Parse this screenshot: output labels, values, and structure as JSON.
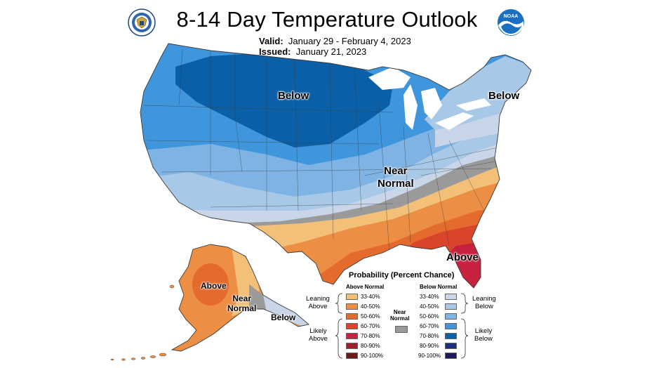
{
  "header": {
    "title": "8-14 Day Temperature Outlook",
    "valid_label": "Valid:",
    "valid_value": "January 29 - February 4, 2023",
    "issued_label": "Issued:",
    "issued_value": "January 21, 2023"
  },
  "logos": {
    "left": "doc-seal-icon",
    "right": "noaa-logo-icon",
    "noaa_text": "NOAA"
  },
  "map_labels": {
    "below_north": "Below",
    "below_northeast": "Below",
    "near_normal_line1": "Near",
    "near_normal_line2": "Normal",
    "above_southeast": "Above",
    "ak_above": "Above",
    "ak_near_line1": "Near",
    "ak_near_line2": "Normal",
    "ak_below": "Below"
  },
  "colors": {
    "above": [
      "#f3c07a",
      "#ec8f45",
      "#e46a2e",
      "#d9452b",
      "#c6213f",
      "#a01b2c",
      "#6b1a1a"
    ],
    "below": [
      "#c9d6ea",
      "#a8c8e8",
      "#7fb3e3",
      "#3f96dc",
      "#0b5fa6",
      "#1a2f80",
      "#1b1a5a"
    ],
    "near_normal": "#9a9a9a",
    "land_outline": "#3a3a3a",
    "water": "#ffffff"
  },
  "legend": {
    "title": "Probability (Percent Chance)",
    "above_header": "Above Normal",
    "below_header": "Below Normal",
    "leaning_above": [
      "Leaning",
      "Above"
    ],
    "likely_above": [
      "Likely",
      "Above"
    ],
    "leaning_below": [
      "Leaning",
      "Below"
    ],
    "likely_below": [
      "Likely",
      "Below"
    ],
    "near_normal": [
      "Near",
      "Normal"
    ],
    "ranges": [
      "33-40%",
      "40-50%",
      "50-60%",
      "60-70%",
      "70-80%",
      "80-90%",
      "90-100%"
    ]
  }
}
